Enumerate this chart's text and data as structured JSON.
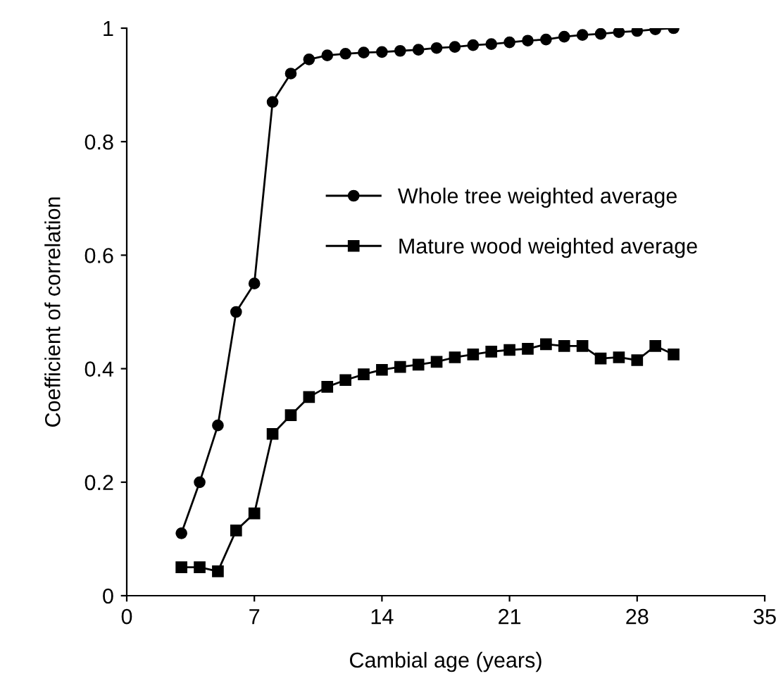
{
  "chart_data": {
    "type": "line",
    "xlabel": "Cambial age (years)",
    "ylabel": "Coefficient of correlation",
    "x": [
      3,
      4,
      5,
      6,
      7,
      8,
      9,
      10,
      11,
      12,
      13,
      14,
      15,
      16,
      17,
      18,
      19,
      20,
      21,
      22,
      23,
      24,
      25,
      26,
      27,
      28,
      29,
      30
    ],
    "series": [
      {
        "name": "Whole tree weighted average",
        "color": "#000000",
        "marker": "circle",
        "values": [
          0.11,
          0.2,
          0.3,
          0.5,
          0.55,
          0.87,
          0.92,
          0.945,
          0.952,
          0.955,
          0.957,
          0.958,
          0.96,
          0.962,
          0.965,
          0.967,
          0.97,
          0.972,
          0.975,
          0.978,
          0.98,
          0.985,
          0.988,
          0.99,
          0.993,
          0.995,
          0.998,
          1.0
        ]
      },
      {
        "name": "Mature wood weighted average",
        "color": "#000000",
        "marker": "square",
        "values": [
          0.05,
          0.05,
          0.043,
          0.115,
          0.145,
          0.285,
          0.318,
          0.35,
          0.368,
          0.38,
          0.39,
          0.398,
          0.403,
          0.407,
          0.412,
          0.42,
          0.425,
          0.43,
          0.433,
          0.435,
          0.443,
          0.44,
          0.44,
          0.418,
          0.42,
          0.415,
          0.44,
          0.425
        ]
      }
    ],
    "xlim": [
      0,
      35
    ],
    "xticks": [
      0,
      7,
      14,
      21,
      28,
      35
    ],
    "ylim": [
      0,
      1
    ],
    "yticks": [
      0,
      0.2,
      0.4,
      0.6,
      0.8,
      1
    ],
    "grid": false,
    "legend": "top right",
    "line_style": "solid"
  }
}
